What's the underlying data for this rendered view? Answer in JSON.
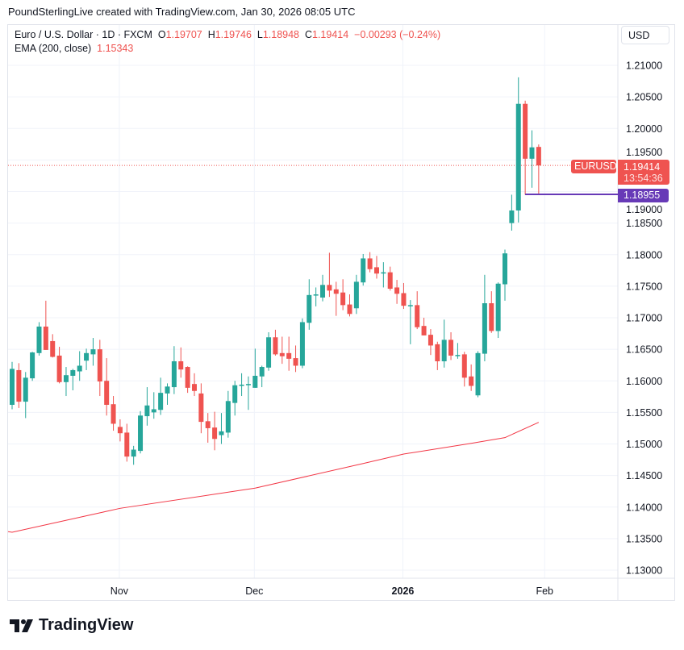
{
  "credit": "PoundSterlingLive created with TradingView.com, Jan 30, 2026 08:05 UTC",
  "legend": {
    "symbol": "Euro / U.S. Dollar · 1D · FXCM",
    "o_label": "O",
    "o": "1.19707",
    "h_label": "H",
    "h": "1.19746",
    "l_label": "L",
    "l": "1.18948",
    "c_label": "C",
    "c": "1.19414",
    "change": "−0.00293 (−0.24%)",
    "ema_label": "EMA (200, close)",
    "ema_value": "1.15343"
  },
  "currency_button": "USD",
  "labels": {
    "symbol_tag": "EURUSD",
    "last_price": "1.19414",
    "countdown": "13:54:36",
    "line_price": "1.18955"
  },
  "brand": "TradingView",
  "colors": {
    "up": "#26a69a",
    "down": "#ef5350",
    "ema": "#f23645",
    "line": "#673ab7",
    "grid": "#f0f3fa"
  },
  "chart_data": {
    "type": "candlestick",
    "title": "",
    "ylim": [
      1.1285,
      1.2145
    ],
    "grid": true,
    "y_ticks": [
      "1.21000",
      "1.20500",
      "1.20000",
      "1.19500",
      "1.19000",
      "1.18500",
      "1.18000",
      "1.17500",
      "1.17000",
      "1.16500",
      "1.16000",
      "1.15500",
      "1.15000",
      "1.14500",
      "1.14000",
      "1.13500",
      "1.13000"
    ],
    "x_ticks": [
      {
        "label": "Nov",
        "at_index": 16
      },
      {
        "label": "Dec",
        "at_index": 36
      },
      {
        "label": "2026",
        "at_index": 58,
        "bold": true
      },
      {
        "label": "Feb",
        "at_index": 79
      }
    ],
    "ohlc": [
      [
        1.1562,
        1.163,
        1.1555,
        1.1619
      ],
      [
        1.1617,
        1.1628,
        1.1557,
        1.1567
      ],
      [
        1.1567,
        1.1614,
        1.1541,
        1.1605
      ],
      [
        1.1604,
        1.1646,
        1.16,
        1.1645
      ],
      [
        1.1644,
        1.1693,
        1.164,
        1.1686
      ],
      [
        1.1686,
        1.1727,
        1.1649,
        1.1649
      ],
      [
        1.1663,
        1.1674,
        1.1637,
        1.1638
      ],
      [
        1.164,
        1.1654,
        1.1596,
        1.1598
      ],
      [
        1.1598,
        1.1622,
        1.1576,
        1.1609
      ],
      [
        1.1608,
        1.1619,
        1.1585,
        1.1617
      ],
      [
        1.1615,
        1.1647,
        1.16,
        1.1624
      ],
      [
        1.1632,
        1.1651,
        1.1617,
        1.1644
      ],
      [
        1.1642,
        1.1668,
        1.1624,
        1.165
      ],
      [
        1.165,
        1.1665,
        1.1576,
        1.1599
      ],
      [
        1.16,
        1.1636,
        1.1545,
        1.1562
      ],
      [
        1.1563,
        1.1576,
        1.1521,
        1.1532
      ],
      [
        1.1527,
        1.1539,
        1.1504,
        1.1517
      ],
      [
        1.1518,
        1.1532,
        1.1472,
        1.148
      ],
      [
        1.148,
        1.1497,
        1.1467,
        1.1491
      ],
      [
        1.1489,
        1.1552,
        1.1485,
        1.1545
      ],
      [
        1.1544,
        1.159,
        1.1529,
        1.1561
      ],
      [
        1.155,
        1.1582,
        1.154,
        1.1555
      ],
      [
        1.1554,
        1.1605,
        1.1546,
        1.1581
      ],
      [
        1.158,
        1.1596,
        1.1562,
        1.1591
      ],
      [
        1.159,
        1.1655,
        1.1579,
        1.1631
      ],
      [
        1.1631,
        1.1653,
        1.1605,
        1.1618
      ],
      [
        1.1622,
        1.1623,
        1.1581,
        1.1589
      ],
      [
        1.1595,
        1.1612,
        1.1576,
        1.1584
      ],
      [
        1.158,
        1.1596,
        1.1517,
        1.1535
      ],
      [
        1.1536,
        1.1549,
        1.1502,
        1.1525
      ],
      [
        1.1526,
        1.1551,
        1.149,
        1.1508
      ],
      [
        1.1514,
        1.1549,
        1.15,
        1.152
      ],
      [
        1.1518,
        1.1584,
        1.151,
        1.1568
      ],
      [
        1.1565,
        1.16,
        1.1545,
        1.1593
      ],
      [
        1.1592,
        1.1612,
        1.1576,
        1.1594
      ],
      [
        1.1594,
        1.1607,
        1.1554,
        1.1595
      ],
      [
        1.1589,
        1.1651,
        1.1589,
        1.1608
      ],
      [
        1.1607,
        1.1624,
        1.159,
        1.1622
      ],
      [
        1.1621,
        1.1677,
        1.1616,
        1.1669
      ],
      [
        1.1669,
        1.1681,
        1.164,
        1.1642
      ],
      [
        1.1644,
        1.167,
        1.1627,
        1.1639
      ],
      [
        1.1644,
        1.167,
        1.1616,
        1.1635
      ],
      [
        1.1636,
        1.1656,
        1.1614,
        1.1624
      ],
      [
        1.1624,
        1.1699,
        1.162,
        1.1693
      ],
      [
        1.1692,
        1.1761,
        1.1681,
        1.1736
      ],
      [
        1.1736,
        1.1748,
        1.1718,
        1.1737
      ],
      [
        1.1732,
        1.1768,
        1.1726,
        1.1752
      ],
      [
        1.1752,
        1.1803,
        1.1733,
        1.1743
      ],
      [
        1.1745,
        1.1757,
        1.1703,
        1.1738
      ],
      [
        1.174,
        1.1761,
        1.1712,
        1.172
      ],
      [
        1.1721,
        1.1737,
        1.1702,
        1.1706
      ],
      [
        1.1715,
        1.1768,
        1.1706,
        1.1757
      ],
      [
        1.1756,
        1.1801,
        1.1751,
        1.1794
      ],
      [
        1.1794,
        1.1804,
        1.1772,
        1.1777
      ],
      [
        1.178,
        1.1798,
        1.1762,
        1.177
      ],
      [
        1.1771,
        1.1788,
        1.1748,
        1.1772
      ],
      [
        1.1772,
        1.1781,
        1.1743,
        1.1746
      ],
      [
        1.1748,
        1.176,
        1.1722,
        1.1738
      ],
      [
        1.1739,
        1.1755,
        1.1714,
        1.1719
      ],
      [
        1.1719,
        1.1728,
        1.1658,
        1.172
      ],
      [
        1.172,
        1.1742,
        1.1682,
        1.1685
      ],
      [
        1.1687,
        1.17,
        1.1672,
        1.1672
      ],
      [
        1.1673,
        1.1682,
        1.1641,
        1.1656
      ],
      [
        1.1658,
        1.1662,
        1.1617,
        1.1631
      ],
      [
        1.1631,
        1.1697,
        1.1621,
        1.1665
      ],
      [
        1.1665,
        1.1677,
        1.1633,
        1.164
      ],
      [
        1.164,
        1.166,
        1.1635,
        1.1641
      ],
      [
        1.1642,
        1.1646,
        1.1591,
        1.1605
      ],
      [
        1.1607,
        1.1626,
        1.1584,
        1.1592
      ],
      [
        1.1577,
        1.1647,
        1.1574,
        1.1644
      ],
      [
        1.1643,
        1.1768,
        1.1631,
        1.1723
      ],
      [
        1.1723,
        1.1742,
        1.1676,
        1.1679
      ],
      [
        1.1679,
        1.1756,
        1.1668,
        1.1754
      ],
      [
        1.1753,
        1.1808,
        1.1727,
        1.1802
      ],
      [
        1.185,
        1.1895,
        1.1838,
        1.187
      ],
      [
        1.187,
        1.2081,
        1.1851,
        1.2039
      ],
      [
        1.2039,
        1.2044,
        1.1895,
        1.1952
      ],
      [
        1.1952,
        1.1997,
        1.1906,
        1.197
      ],
      [
        1.19707,
        1.19746,
        1.18948,
        1.19414
      ]
    ],
    "ema_200": [
      [
        0,
        1.136
      ],
      [
        16,
        1.1398
      ],
      [
        36,
        1.143
      ],
      [
        52,
        1.1469
      ],
      [
        58,
        1.1484
      ],
      [
        68,
        1.1501
      ],
      [
        73,
        1.151
      ],
      [
        78,
        1.15343
      ]
    ],
    "horizontal_line": 1.18955,
    "last_close": 1.19414
  }
}
